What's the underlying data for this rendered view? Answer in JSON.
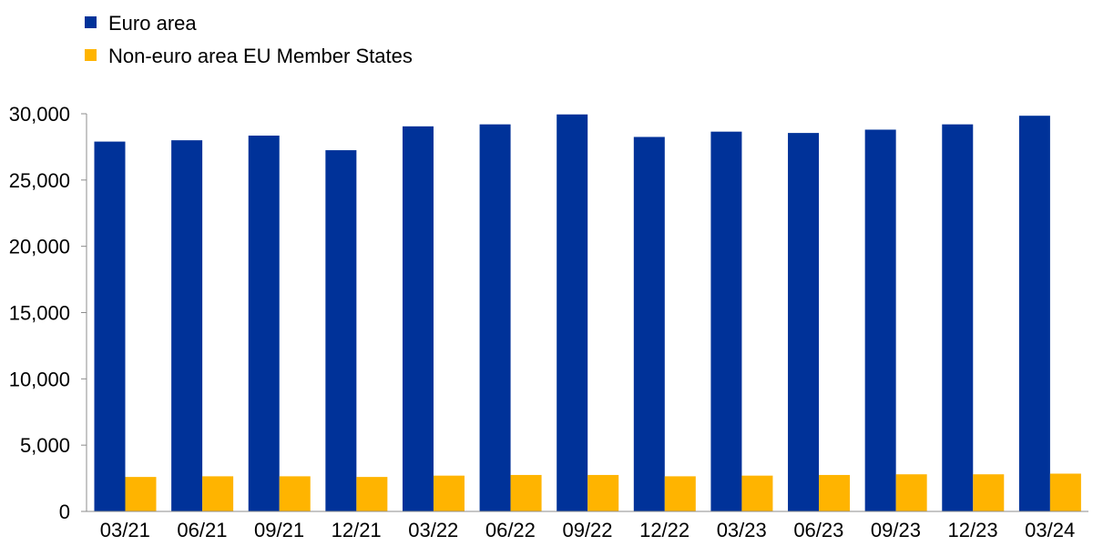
{
  "chart_data": {
    "type": "bar",
    "categories": [
      "03/21",
      "06/21",
      "09/21",
      "12/21",
      "03/22",
      "06/22",
      "09/22",
      "12/22",
      "03/23",
      "06/23",
      "09/23",
      "12/23",
      "03/24"
    ],
    "series": [
      {
        "name": "Euro area",
        "color": "#003299",
        "values": [
          27900,
          28000,
          28350,
          27250,
          29050,
          29200,
          29950,
          28250,
          28650,
          28550,
          28800,
          29200,
          29850
        ]
      },
      {
        "name": "Non-euro area EU Member States",
        "color": "#FFB400",
        "values": [
          2600,
          2650,
          2650,
          2600,
          2700,
          2750,
          2750,
          2650,
          2700,
          2750,
          2800,
          2800,
          2850
        ]
      }
    ],
    "yticks": [
      "0",
      "5,000",
      "10,000",
      "15,000",
      "20,000",
      "25,000",
      "30,000"
    ],
    "ytick_values": [
      0,
      5000,
      10000,
      15000,
      20000,
      25000,
      30000
    ],
    "ylim": [
      0,
      30000
    ],
    "legend_position": "top-left",
    "grid": false
  }
}
